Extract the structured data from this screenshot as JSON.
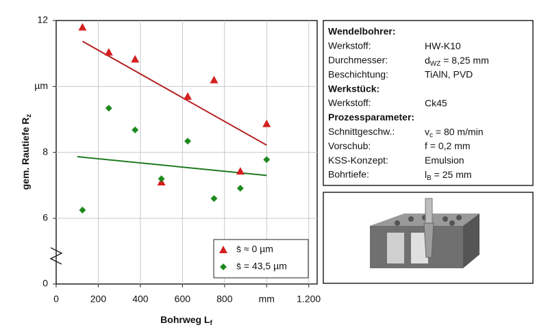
{
  "chart_data": {
    "type": "scatter",
    "y_label": {
      "text": "gem. Rautiefe R",
      "sub": "z"
    },
    "x_label": {
      "text": "Bohrweg L",
      "sub": "f"
    },
    "xlim": [
      0,
      1240
    ],
    "ylim": [
      0,
      12
    ],
    "xticks": [
      0,
      200,
      400,
      600,
      800,
      {
        "value": 1000,
        "label": "mm"
      },
      {
        "value": 1200,
        "label": "1.200"
      }
    ],
    "yticks": [
      0,
      6,
      8,
      {
        "value": 10,
        "label": "µm"
      },
      12
    ],
    "grid": true,
    "x": [
      125,
      250,
      375,
      500,
      625,
      750,
      875,
      1000
    ],
    "series": [
      {
        "name": "s̄ ≈ 0 µm",
        "color": "#d42020",
        "marker": "triangle",
        "values": [
          11.8,
          11.04,
          10.83,
          7.1,
          9.7,
          10.2,
          7.43,
          8.87
        ]
      },
      {
        "name": "s̄ = 43,5 µm",
        "color": "#1e8a1e",
        "marker": "diamond",
        "values": [
          6.25,
          9.34,
          8.68,
          7.2,
          8.34,
          6.6,
          6.91,
          7.78
        ]
      }
    ],
    "trendlines": [
      {
        "color": "#b52020",
        "x": [
          125,
          1000
        ],
        "values": [
          11.37,
          8.22
        ]
      },
      {
        "color": "#1e7a1e",
        "x": [
          100,
          1000
        ],
        "values": [
          7.87,
          7.3
        ]
      }
    ],
    "legend": "lower right"
  },
  "info": {
    "rows": [
      {
        "heading": "Wendelbohrer:"
      },
      {
        "key": "Werkstoff:",
        "value": {
          "text": "HW-K10"
        }
      },
      {
        "key": "Durchmesser:",
        "value": {
          "text": "d",
          "sub": "WZ",
          "rest": " = 8,25 mm"
        }
      },
      {
        "key": "Beschichtung:",
        "value": {
          "text": "TiAlN, PVD"
        }
      },
      {
        "heading": "Werkstück:"
      },
      {
        "key": "Werkstoff:",
        "value": {
          "text": "Ck45"
        }
      },
      {
        "heading": "Prozessparameter:"
      },
      {
        "key": "Schnittgeschw.:",
        "value": {
          "text": "v",
          "sub": "c",
          "rest": " = 80 m/min"
        }
      },
      {
        "key": "Vorschub:",
        "value": {
          "text": "f = 0,2 mm"
        }
      },
      {
        "key": "KSS-Konzept:",
        "value": {
          "text": "Emulsion"
        }
      },
      {
        "key": "Bohrtiefe:",
        "value": {
          "text": "l",
          "sub": "B",
          "rest": " = 25 mm"
        }
      }
    ]
  }
}
